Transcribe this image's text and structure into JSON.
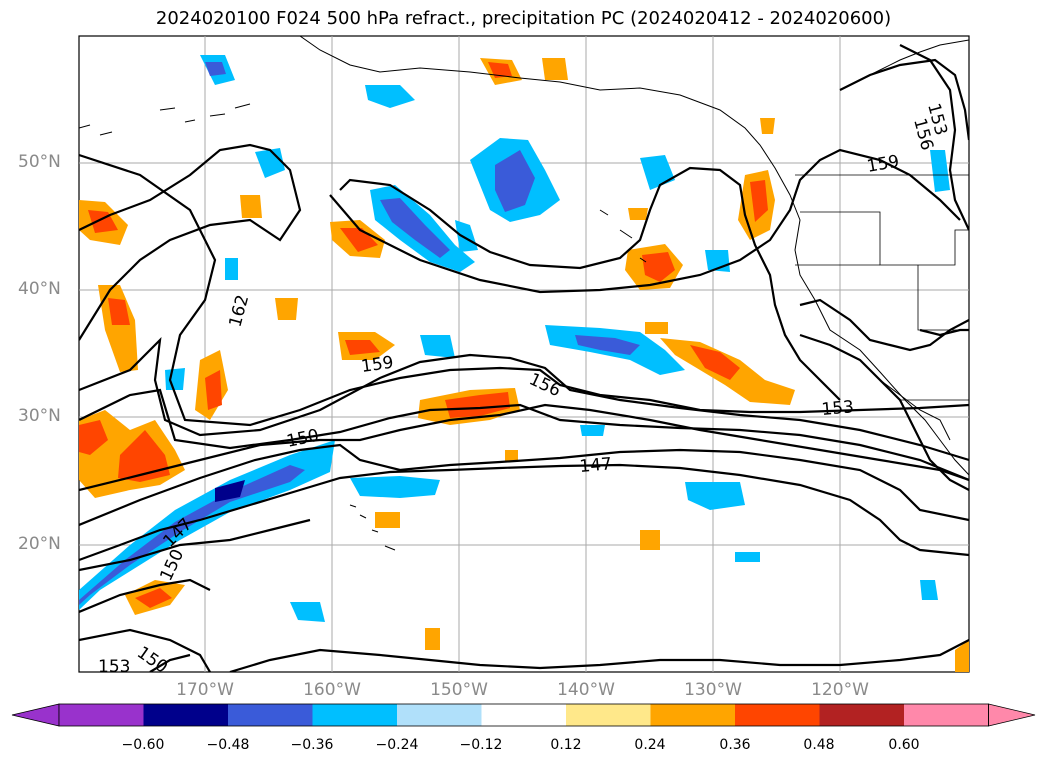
{
  "title": "2024020100 F024 500 hPa refract., precipitation PC (2024020412 - 2024020600)",
  "latitude_labels": [
    "50°N",
    "40°N",
    "30°N",
    "20°N"
  ],
  "longitude_labels": [
    "170°W",
    "160°W",
    "150°W",
    "140°W",
    "130°W",
    "120°W"
  ],
  "contour_labels": [
    "162",
    "159",
    "156",
    "153",
    "150",
    "147",
    "150",
    "153",
    "150",
    "153",
    "156",
    "159"
  ],
  "colorbar": {
    "tick_labels": [
      "−0.60",
      "−0.48",
      "−0.36",
      "−0.24",
      "−0.12",
      "0.12",
      "0.24",
      "0.36",
      "0.48",
      "0.60"
    ],
    "colors": [
      "#9932cc",
      "#00008b",
      "#3a5bd9",
      "#00bfff",
      "#b0e0fa",
      "#ffffff",
      "#ffe88a",
      "#ffa500",
      "#ff4500",
      "#b22222",
      "#ff88aa"
    ]
  },
  "colors": {
    "gridline": "#aaaaaa",
    "contour": "#000000",
    "coastline": "#000000",
    "axis_label": "#8a8a8a"
  }
}
